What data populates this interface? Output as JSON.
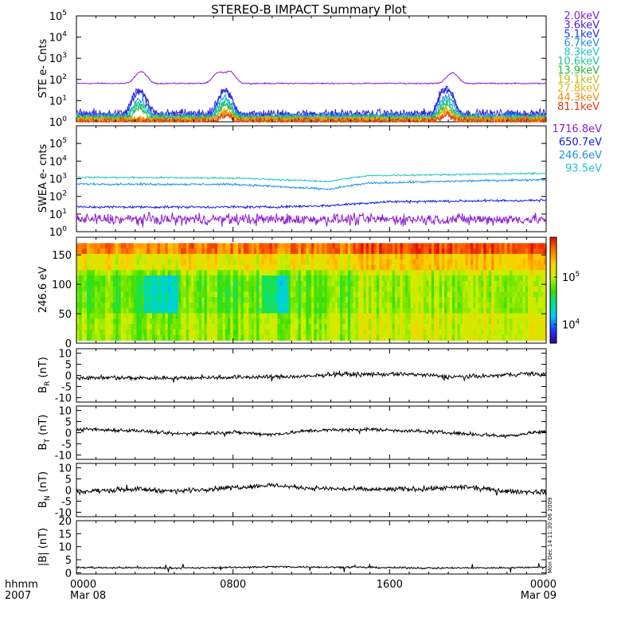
{
  "chart_data": {
    "title": "STEREO-B IMPACT Summary Plot",
    "x_axis": {
      "type": "time",
      "range_hours": [
        0,
        24
      ],
      "ticks": [
        {
          "hour": 0,
          "label": "0000",
          "sub": "Mar 08"
        },
        {
          "hour": 8,
          "label": "0800",
          "sub": ""
        },
        {
          "hour": 16,
          "label": "1600",
          "sub": ""
        },
        {
          "hour": 24,
          "label": "0000",
          "sub": "Mar 09"
        }
      ],
      "corner_labels": [
        "hhmm",
        "2007"
      ]
    },
    "timestamp": "Mon Dec 14 11:30:06 2009",
    "panels": [
      {
        "id": "ste",
        "type": "line",
        "ylabel": "STE e- Cnts",
        "yscale": "log",
        "ylim": [
          1,
          100000
        ],
        "ytick_labels": [
          "10",
          "10",
          "10",
          "10",
          "10",
          "10"
        ],
        "ytick_exponents": [
          "0",
          "1",
          "2",
          "3",
          "4",
          "5"
        ],
        "series": [
          {
            "name": "2.0keV",
            "color": "#8d1cd0",
            "base": 65,
            "noise": 0.05,
            "peaks": [
              [
                3.3,
                230
              ],
              [
                7.3,
                220
              ],
              [
                7.8,
                240
              ],
              [
                19.2,
                200
              ]
            ]
          },
          {
            "name": "3.6keV",
            "color": "#4a1ad6",
            "base": 2.4,
            "noise": 0.35,
            "peaks": [
              [
                3.2,
                30
              ],
              [
                7.6,
                28
              ],
              [
                18.9,
                40
              ]
            ]
          },
          {
            "name": "5.1keV",
            "color": "#1437e6",
            "base": 2.0,
            "noise": 0.35,
            "peaks": [
              [
                3.2,
                24
              ],
              [
                7.6,
                25
              ],
              [
                18.9,
                32
              ]
            ]
          },
          {
            "name": "6.7keV",
            "color": "#1f8fe8",
            "base": 1.8,
            "noise": 0.3,
            "peaks": [
              [
                3.2,
                12
              ],
              [
                7.6,
                14
              ],
              [
                18.9,
                16
              ]
            ]
          },
          {
            "name": "8.3keV",
            "color": "#20c6c3",
            "base": 1.6,
            "noise": 0.3,
            "peaks": [
              [
                3.2,
                8
              ],
              [
                7.6,
                10
              ],
              [
                18.9,
                11
              ]
            ]
          },
          {
            "name": "10.6keV",
            "color": "#22c68c",
            "base": 1.5,
            "noise": 0.3,
            "peaks": [
              [
                3.2,
                6
              ],
              [
                7.6,
                8
              ],
              [
                18.9,
                8
              ]
            ]
          },
          {
            "name": "13.9keV",
            "color": "#27b73a",
            "base": 1.4,
            "noise": 0.3,
            "peaks": [
              [
                3.2,
                4
              ],
              [
                7.6,
                6
              ],
              [
                18.9,
                6
              ]
            ]
          },
          {
            "name": "19.1keV",
            "color": "#b4c214",
            "base": 1.3,
            "noise": 0.3,
            "peaks": [
              [
                7.6,
                4
              ],
              [
                18.9,
                4
              ]
            ]
          },
          {
            "name": "27.8keV",
            "color": "#e8b614",
            "base": 1.25,
            "noise": 0.3,
            "peaks": [
              [
                7.6,
                3
              ],
              [
                18.9,
                3
              ]
            ]
          },
          {
            "name": "44.3keV",
            "color": "#f08a10",
            "base": 1.2,
            "noise": 0.3,
            "peaks": [
              [
                7.6,
                2.5
              ],
              [
                18.9,
                2.5
              ]
            ]
          },
          {
            "name": "81.1keV",
            "color": "#de3a12",
            "base": 1.1,
            "noise": 0.3,
            "peaks": [
              [
                7.6,
                2
              ],
              [
                18.9,
                2
              ]
            ]
          }
        ]
      },
      {
        "id": "swea",
        "type": "line",
        "ylabel": "SWEA e- cnts",
        "yscale": "log",
        "ylim": [
          1,
          1000000
        ],
        "ytick_labels": [
          "10",
          "10",
          "10",
          "10",
          "10",
          "10"
        ],
        "ytick_exponents": [
          "0",
          "1",
          "2",
          "3",
          "4",
          "5"
        ],
        "series": [
          {
            "name": "1716.8eV",
            "color": "#8d1cd0",
            "knots": [
              [
                0,
                5
              ],
              [
                24,
                5
              ]
            ],
            "noise": 0.55
          },
          {
            "name": "650.7eV",
            "color": "#1020e0",
            "knots": [
              [
                0,
                25
              ],
              [
                10,
                25
              ],
              [
                13,
                30
              ],
              [
                16,
                50
              ],
              [
                24,
                60
              ]
            ],
            "noise": 0.12
          },
          {
            "name": "246.6eV",
            "color": "#1f8fe8",
            "knots": [
              [
                0,
                500
              ],
              [
                8,
                480
              ],
              [
                11,
                320
              ],
              [
                13,
                250
              ],
              [
                15,
                560
              ],
              [
                24,
                900
              ]
            ],
            "noise": 0.1
          },
          {
            "name": "93.5eV",
            "color": "#20c6c3",
            "knots": [
              [
                0,
                1200
              ],
              [
                8,
                1100
              ],
              [
                10,
                900
              ],
              [
                13,
                700
              ],
              [
                15,
                1500
              ],
              [
                24,
                2000
              ]
            ],
            "noise": 0.08
          }
        ]
      },
      {
        "id": "pad",
        "type": "heatmap",
        "ylabel": "246.6 eV",
        "ylim": [
          0,
          180
        ],
        "yticks": [
          0,
          50,
          100,
          150
        ],
        "ytick_labels": [
          "0",
          "50",
          "100",
          "150"
        ],
        "colorbar": {
          "scale": "log",
          "range": [
            4000,
            700000
          ],
          "ticks": [
            {
              "value": 10000,
              "label": "10",
              "exp": "4"
            },
            {
              "value": 100000,
              "label": "10",
              "exp": "5"
            }
          ],
          "colors": [
            "#3a0090",
            "#1a3cff",
            "#00c8ff",
            "#00e28a",
            "#3ee000",
            "#c8f000",
            "#ffd000",
            "#ff7800",
            "#e01000"
          ]
        }
      },
      {
        "id": "br",
        "type": "line",
        "ylabel": "B",
        "ylabel_sub": "R",
        "ylabel_unit": " (nT)",
        "ylim": [
          -12,
          12
        ],
        "yticks": [
          -10,
          -5,
          0,
          5,
          10
        ],
        "ytick_labels": [
          "-10",
          "-5",
          "0",
          "5",
          "10"
        ],
        "series": [
          {
            "name": "B_R",
            "color": "#000000",
            "knots": [
              [
                0,
                -1.0
              ],
              [
                5,
                -1.2
              ],
              [
                8,
                -0.8
              ],
              [
                12,
                -0.5
              ],
              [
                13,
                0.6
              ],
              [
                15,
                0.4
              ],
              [
                17,
                0.6
              ],
              [
                19,
                -0.6
              ],
              [
                21,
                -0.4
              ],
              [
                23,
                0.8
              ],
              [
                24,
                0.3
              ]
            ],
            "noise": 0.7
          }
        ]
      },
      {
        "id": "bt",
        "type": "line",
        "ylabel": "B",
        "ylabel_sub": "T",
        "ylabel_unit": " (nT)",
        "ylim": [
          -12,
          12
        ],
        "yticks": [
          -10,
          -5,
          0,
          5,
          10
        ],
        "ytick_labels": [
          "-10",
          "-5",
          "0",
          "5",
          "10"
        ],
        "series": [
          {
            "name": "B_T",
            "color": "#000000",
            "knots": [
              [
                0,
                1.5
              ],
              [
                3,
                1.0
              ],
              [
                5,
                -0.5
              ],
              [
                8,
                0.2
              ],
              [
                10,
                -0.8
              ],
              [
                12,
                1.0
              ],
              [
                15,
                1.5
              ],
              [
                18,
                0.5
              ],
              [
                22,
                -1.5
              ],
              [
                24,
                0.8
              ]
            ],
            "noise": 0.6
          }
        ]
      },
      {
        "id": "bn",
        "type": "line",
        "ylabel": "B",
        "ylabel_sub": "N",
        "ylabel_unit": " (nT)",
        "ylim": [
          -12,
          12
        ],
        "yticks": [
          -10,
          -5,
          0,
          5,
          10
        ],
        "ytick_labels": [
          "-10",
          "-5",
          "0",
          "5",
          "10"
        ],
        "series": [
          {
            "name": "B_N",
            "color": "#000000",
            "knots": [
              [
                0,
                -0.8
              ],
              [
                3,
                0.5
              ],
              [
                5,
                -0.5
              ],
              [
                8,
                1.2
              ],
              [
                10,
                2.2
              ],
              [
                12,
                0.8
              ],
              [
                15,
                0.2
              ],
              [
                18,
                0.6
              ],
              [
                20,
                1.2
              ],
              [
                22,
                -0.6
              ],
              [
                24,
                -1.0
              ]
            ],
            "noise": 0.8
          }
        ]
      },
      {
        "id": "bmag",
        "type": "line",
        "ylabel": "|B| (nT)",
        "ylim": [
          -0.5,
          20
        ],
        "yticks": [
          0,
          5,
          10,
          15,
          20
        ],
        "ytick_labels": [
          "0",
          "5",
          "10",
          "15",
          "20"
        ],
        "series": [
          {
            "name": "|B|",
            "color": "#000000",
            "knots": [
              [
                0,
                2.0
              ],
              [
                6,
                1.8
              ],
              [
                10,
                2.3
              ],
              [
                14,
                2.1
              ],
              [
                18,
                1.8
              ],
              [
                22,
                1.9
              ],
              [
                24,
                2.2
              ]
            ],
            "noise": 0.25
          }
        ]
      }
    ]
  }
}
